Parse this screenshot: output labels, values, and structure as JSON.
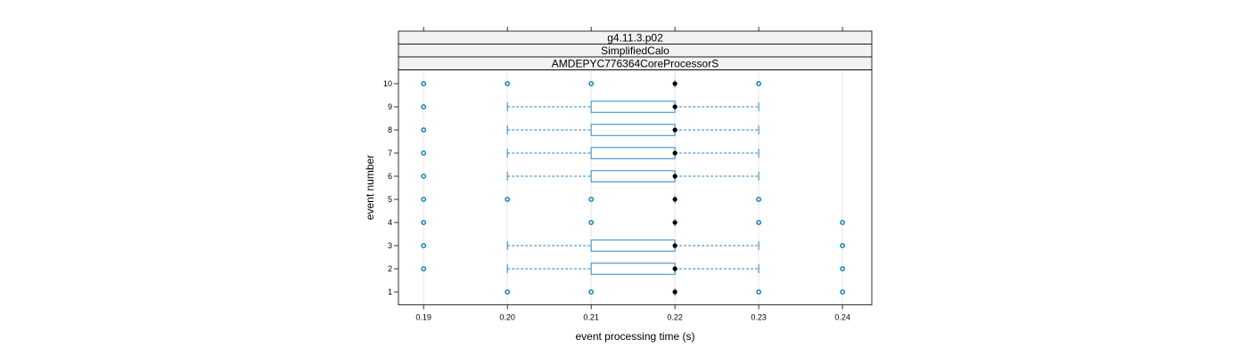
{
  "chart_data": {
    "type": "box",
    "strips": [
      "g4.11.3.p02",
      "SimplifiedCalo",
      "AMDEPYC776364CoreProcessorS"
    ],
    "xlabel": "event processing time (s)",
    "ylabel": "event number",
    "xlim": [
      0.187,
      0.2435
    ],
    "x_ticks": [
      "0.19",
      "0.20",
      "0.21",
      "0.22",
      "0.23",
      "0.24"
    ],
    "y_ticks": [
      "1",
      "2",
      "3",
      "4",
      "5",
      "6",
      "7",
      "8",
      "9",
      "10"
    ],
    "grid": "vertical",
    "colors": {
      "box": "#2b86c4",
      "outlier": "#0a7bb5",
      "median": "#000000",
      "grid": "#e6e6e6",
      "strip_bg": "#f2f2f2"
    },
    "events": [
      {
        "event": 1,
        "box": null,
        "median": 0.22,
        "outliers": [
          0.2,
          0.21,
          0.23,
          0.24
        ]
      },
      {
        "event": 2,
        "box": {
          "whisker_low": 0.2,
          "q1": 0.21,
          "q3": 0.22,
          "whisker_high": 0.23
        },
        "median": 0.22,
        "outliers": [
          0.19,
          0.24
        ]
      },
      {
        "event": 3,
        "box": {
          "whisker_low": 0.2,
          "q1": 0.21,
          "q3": 0.22,
          "whisker_high": 0.23
        },
        "median": 0.22,
        "outliers": [
          0.19,
          0.24
        ]
      },
      {
        "event": 4,
        "box": null,
        "median": 0.22,
        "outliers": [
          0.19,
          0.21,
          0.23,
          0.24
        ]
      },
      {
        "event": 5,
        "box": null,
        "median": 0.22,
        "outliers": [
          0.19,
          0.2,
          0.21,
          0.23
        ]
      },
      {
        "event": 6,
        "box": {
          "whisker_low": 0.2,
          "q1": 0.21,
          "q3": 0.22,
          "whisker_high": 0.23
        },
        "median": 0.22,
        "outliers": [
          0.19
        ]
      },
      {
        "event": 7,
        "box": {
          "whisker_low": 0.2,
          "q1": 0.21,
          "q3": 0.22,
          "whisker_high": 0.23
        },
        "median": 0.22,
        "outliers": [
          0.19
        ]
      },
      {
        "event": 8,
        "box": {
          "whisker_low": 0.2,
          "q1": 0.21,
          "q3": 0.22,
          "whisker_high": 0.23
        },
        "median": 0.22,
        "outliers": [
          0.19
        ]
      },
      {
        "event": 9,
        "box": {
          "whisker_low": 0.2,
          "q1": 0.21,
          "q3": 0.22,
          "whisker_high": 0.23
        },
        "median": 0.22,
        "outliers": [
          0.19
        ]
      },
      {
        "event": 10,
        "box": null,
        "median": 0.22,
        "outliers": [
          0.19,
          0.2,
          0.21,
          0.23
        ]
      }
    ]
  }
}
